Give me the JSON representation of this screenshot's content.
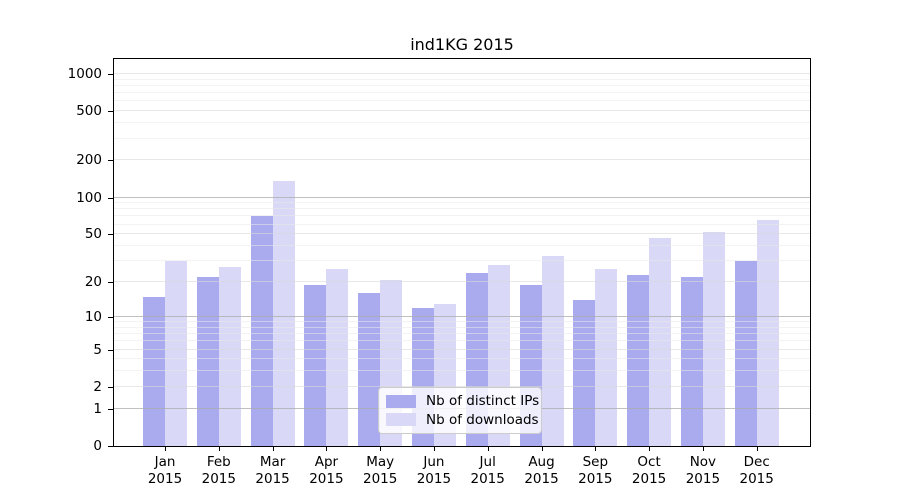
{
  "title": "ind1KG 2015",
  "chart_data": {
    "type": "bar",
    "title": "ind1KG 2015",
    "categories": [
      {
        "month": "Jan",
        "year": "2015"
      },
      {
        "month": "Feb",
        "year": "2015"
      },
      {
        "month": "Mar",
        "year": "2015"
      },
      {
        "month": "Apr",
        "year": "2015"
      },
      {
        "month": "May",
        "year": "2015"
      },
      {
        "month": "Jun",
        "year": "2015"
      },
      {
        "month": "Jul",
        "year": "2015"
      },
      {
        "month": "Aug",
        "year": "2015"
      },
      {
        "month": "Sep",
        "year": "2015"
      },
      {
        "month": "Oct",
        "year": "2015"
      },
      {
        "month": "Nov",
        "year": "2015"
      },
      {
        "month": "Dec",
        "year": "2015"
      }
    ],
    "series": [
      {
        "name": "Nb of distinct IPs",
        "color": "#aaaaee",
        "values": [
          15,
          22,
          70,
          19,
          16,
          12,
          24,
          19,
          14,
          23,
          22,
          30
        ]
      },
      {
        "name": "Nb of downloads",
        "color": "#d9d9f7",
        "values": [
          30,
          27,
          135,
          26,
          21,
          13,
          28,
          33,
          26,
          47,
          52,
          65
        ]
      }
    ],
    "y_axis": {
      "scale": "log1p",
      "ticks": [
        1000,
        500,
        200,
        100,
        50,
        20,
        10,
        5,
        2,
        1,
        0
      ],
      "ylim": [
        0,
        1320
      ],
      "grid": true
    },
    "legend": {
      "position": "lower center"
    }
  }
}
